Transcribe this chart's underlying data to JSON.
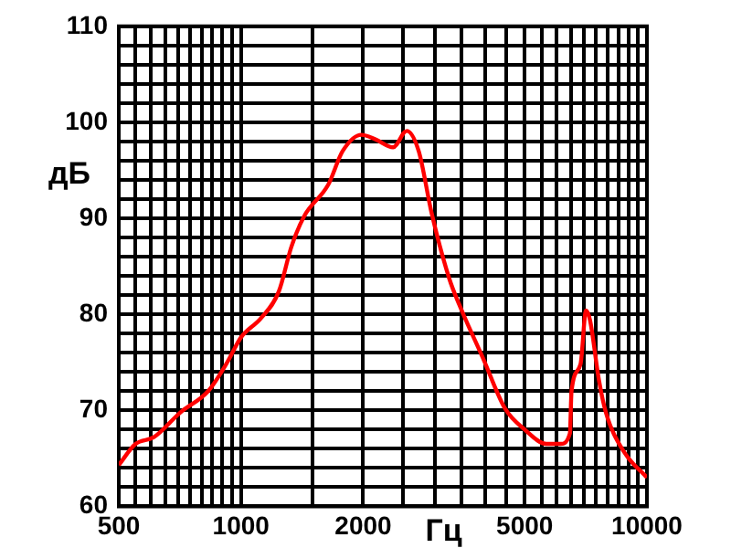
{
  "chart_data": {
    "type": "line",
    "xlabel": "Гц",
    "ylabel": "дБ",
    "log": "x",
    "grid": true,
    "legend": false,
    "marker": "none",
    "line_style": "solid",
    "xlim": [
      500,
      10000
    ],
    "xticks": [
      500,
      {
        "value": 550,
        "label": null
      },
      {
        "value": 600,
        "label": null
      },
      {
        "value": 650,
        "label": null
      },
      {
        "value": 700,
        "label": null
      },
      {
        "value": 750,
        "label": null
      },
      {
        "value": 800,
        "label": null
      },
      {
        "value": 850,
        "label": null
      },
      {
        "value": 900,
        "label": null
      },
      {
        "value": 950,
        "label": null
      },
      1000,
      {
        "value": 1500,
        "label": null
      },
      2000,
      {
        "value": 2500,
        "label": null
      },
      {
        "value": 3000,
        "label": null
      },
      {
        "value": 3500,
        "label": null
      },
      {
        "value": 4000,
        "label": null
      },
      {
        "value": 4500,
        "label": null
      },
      5000,
      {
        "value": 5500,
        "label": null
      },
      {
        "value": 6000,
        "label": null
      },
      {
        "value": 6500,
        "label": null
      },
      {
        "value": 7000,
        "label": null
      },
      {
        "value": 7500,
        "label": null
      },
      {
        "value": 8000,
        "label": null
      },
      {
        "value": 8500,
        "label": null
      },
      {
        "value": 9000,
        "label": null
      },
      {
        "value": 9500,
        "label": null
      },
      10000
    ],
    "ylim": [
      60,
      110
    ],
    "yticks": [
      60,
      {
        "value": 62,
        "label": null
      },
      {
        "value": 64,
        "label": null
      },
      {
        "value": 66,
        "label": null
      },
      {
        "value": 68,
        "label": null
      },
      70,
      {
        "value": 72,
        "label": null
      },
      {
        "value": 74,
        "label": null
      },
      {
        "value": 76,
        "label": null
      },
      {
        "value": 78,
        "label": null
      },
      80,
      {
        "value": 82,
        "label": null
      },
      {
        "value": 84,
        "label": null
      },
      {
        "value": 86,
        "label": null
      },
      {
        "value": 88,
        "label": null
      },
      90,
      {
        "value": 92,
        "label": null
      },
      {
        "value": 94,
        "label": null
      },
      {
        "value": 96,
        "label": null
      },
      {
        "value": 98,
        "label": null
      },
      100,
      {
        "value": 102,
        "label": null
      },
      {
        "value": 104,
        "label": null
      },
      {
        "value": 106,
        "label": null
      },
      {
        "value": 108,
        "label": null
      },
      110
    ],
    "x": [
      500,
      550,
      610,
      710,
      830,
      925,
      1000,
      1120,
      1240,
      1330,
      1430,
      1640,
      1780,
      1980,
      2150,
      2370,
      2560,
      2740,
      2950,
      3260,
      3450,
      3950,
      4470,
      5000,
      5650,
      6130,
      6460,
      6520,
      6860,
      7080,
      7240,
      7620,
      7920,
      8770,
      10000
    ],
    "series": [
      {
        "color": "#ff0000",
        "values": [
          64.3,
          66.5,
          67.2,
          69.8,
          72,
          75,
          77.6,
          79.6,
          82.4,
          87,
          90.2,
          93.5,
          97,
          98.7,
          98.2,
          97.4,
          99.1,
          97,
          90.5,
          83.7,
          81,
          75.4,
          70.2,
          68,
          66.5,
          66.5,
          67.6,
          72,
          74.8,
          80.4,
          79.4,
          73.1,
          69.8,
          65.7,
          63
        ]
      }
    ]
  }
}
